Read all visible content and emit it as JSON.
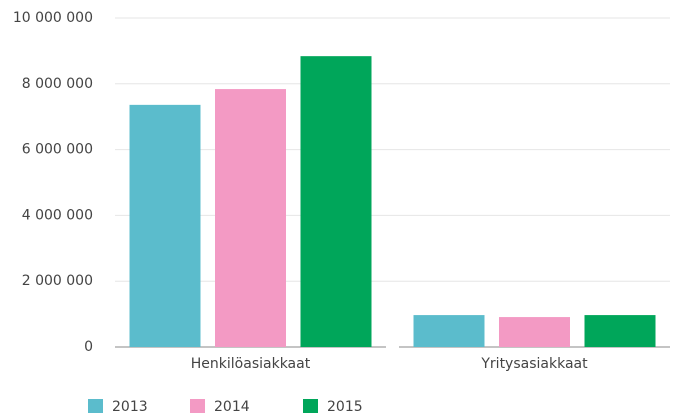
{
  "chart_data": {
    "type": "bar",
    "categories": [
      "Henkilöasiakkaat",
      "Yritysasiakkaat"
    ],
    "series": [
      {
        "name": "2013",
        "color": "#5bbccc",
        "values": [
          7360000,
          970000
        ]
      },
      {
        "name": "2014",
        "color": "#f39ac4",
        "values": [
          7840000,
          910000
        ]
      },
      {
        "name": "2015",
        "color": "#00a65a",
        "values": [
          8840000,
          970000
        ]
      }
    ],
    "ylim": [
      0,
      10000000
    ],
    "yticks": [
      0,
      {
        "value": 2000000,
        "label": "2 000 000"
      },
      {
        "value": 4000000,
        "label": "4 000 000"
      },
      {
        "value": 6000000,
        "label": "6 000 000"
      },
      {
        "value": 8000000,
        "label": "8 000 000"
      },
      {
        "value": 10000000,
        "label": "10 000 000"
      }
    ],
    "grid": true
  }
}
